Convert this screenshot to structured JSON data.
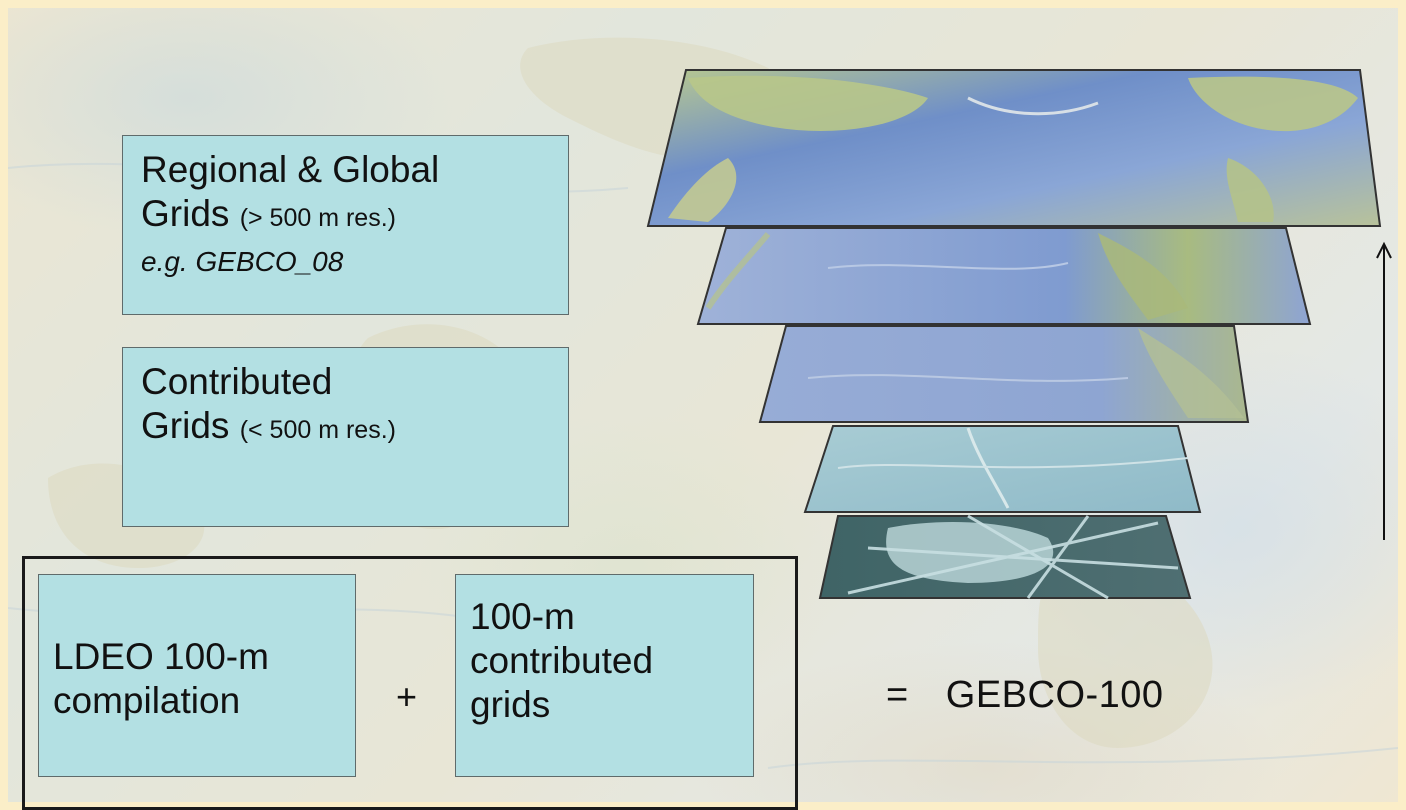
{
  "boxes": {
    "regional": {
      "title_line1": "Regional & Global",
      "title_line2": "Grids",
      "resolution": "(> 500 m res.)",
      "example": "e.g. GEBCO_08"
    },
    "contributed": {
      "title_line1": "Contributed",
      "title_line2": "Grids",
      "resolution": "(< 500 m res.)"
    },
    "ldeo": {
      "line1": "LDEO 100-m",
      "line2": "compilation"
    },
    "hundred_m": {
      "line1": "100-m",
      "line2": "contributed",
      "line3": "grids"
    }
  },
  "operators": {
    "plus": "+",
    "equals": "="
  },
  "result": {
    "label": "GEBCO-100"
  },
  "layers": [
    {
      "name": "global-grid-layer",
      "depicts": "world bathymetry map"
    },
    {
      "name": "ocean-basin-layer",
      "depicts": "ocean basin bathymetry"
    },
    {
      "name": "regional-layer",
      "depicts": "regional bathymetry"
    },
    {
      "name": "contributed-layer",
      "depicts": "contributed high-res grids"
    },
    {
      "name": "ldeo-layer",
      "depicts": "ship track multibeam coverage"
    }
  ],
  "colors": {
    "box_fill": "#b3e0e3",
    "border_frame": "#fbeec8",
    "text": "#111111"
  }
}
